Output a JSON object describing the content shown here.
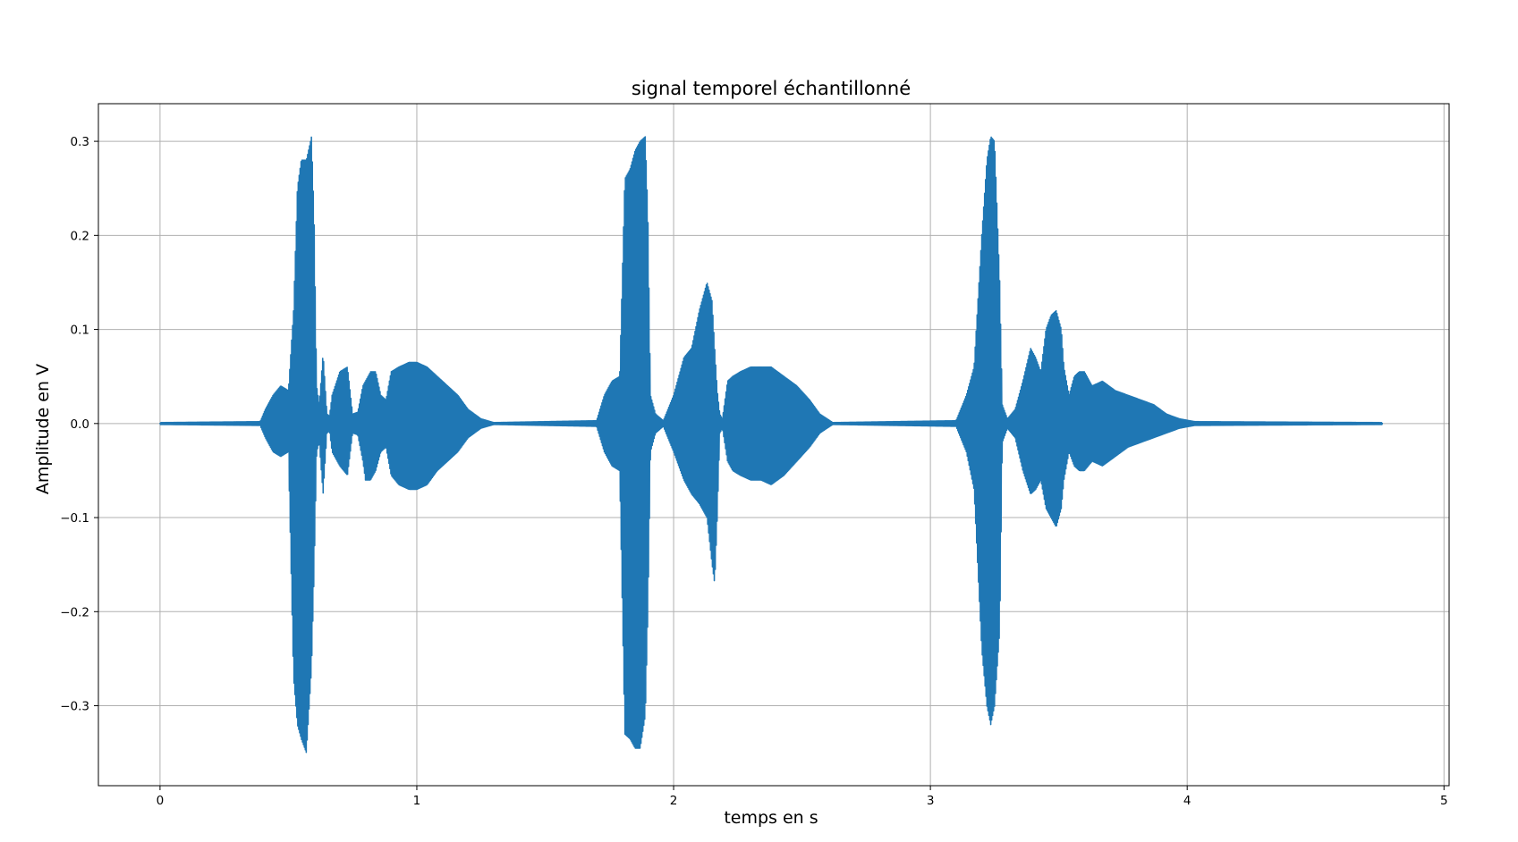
{
  "chart_data": {
    "type": "line",
    "title": "signal temporel échantillonné",
    "xlabel": "temps en s",
    "ylabel": "Amplitude en V",
    "xlim": [
      -0.24,
      5.02
    ],
    "ylim": [
      -0.385,
      0.34
    ],
    "xticks": [
      0,
      1,
      2,
      3,
      4,
      5
    ],
    "xtick_labels": [
      "0",
      "1",
      "2",
      "3",
      "4",
      "5"
    ],
    "yticks": [
      0.3,
      0.2,
      0.1,
      0.0,
      -0.1,
      -0.2,
      -0.3
    ],
    "ytick_labels": [
      "0.3",
      "0.2",
      "0.1",
      "0.0",
      "−0.1",
      "−0.2",
      "−0.3"
    ],
    "grid": true,
    "series": [
      {
        "color": "#1f77b4",
        "x_range": [
          0,
          4.76
        ],
        "envelope": {
          "x": [
            0,
            0.39,
            0.41,
            0.44,
            0.47,
            0.5,
            0.52,
            0.535,
            0.55,
            0.57,
            0.59,
            0.6,
            0.61,
            0.62,
            0.635,
            0.65,
            0.66,
            0.67,
            0.7,
            0.73,
            0.75,
            0.77,
            0.79,
            0.8,
            0.82,
            0.84,
            0.86,
            0.88,
            0.9,
            0.93,
            0.97,
            1.0,
            1.04,
            1.08,
            1.12,
            1.16,
            1.2,
            1.25,
            1.3,
            1.7,
            1.73,
            1.76,
            1.79,
            1.81,
            1.83,
            1.85,
            1.87,
            1.89,
            1.9,
            1.91,
            1.93,
            1.96,
            2.0,
            2.04,
            2.07,
            2.1,
            2.13,
            2.15,
            2.16,
            2.17,
            2.18,
            2.19,
            2.21,
            2.23,
            2.26,
            2.3,
            2.34,
            2.38,
            2.43,
            2.48,
            2.53,
            2.57,
            2.62,
            3.1,
            3.14,
            3.17,
            3.2,
            3.22,
            3.235,
            3.25,
            3.27,
            3.28,
            3.3,
            3.33,
            3.36,
            3.39,
            3.41,
            3.43,
            3.45,
            3.47,
            3.49,
            3.51,
            3.52,
            3.54,
            3.56,
            3.58,
            3.6,
            3.63,
            3.67,
            3.72,
            3.77,
            3.82,
            3.87,
            3.92,
            3.97,
            4.03,
            4.76
          ],
          "upper": [
            0.001,
            0.002,
            0.015,
            0.03,
            0.04,
            0.035,
            0.12,
            0.25,
            0.28,
            0.28,
            0.305,
            0.22,
            0.04,
            0.02,
            0.075,
            0.01,
            0.008,
            0.03,
            0.055,
            0.06,
            0.01,
            0.012,
            0.04,
            0.045,
            0.055,
            0.055,
            0.03,
            0.025,
            0.055,
            0.06,
            0.065,
            0.065,
            0.06,
            0.05,
            0.04,
            0.03,
            0.015,
            0.005,
            0.001,
            0.003,
            0.03,
            0.045,
            0.05,
            0.26,
            0.27,
            0.29,
            0.3,
            0.305,
            0.22,
            0.03,
            0.01,
            0.003,
            0.03,
            0.07,
            0.08,
            0.12,
            0.15,
            0.13,
            0.08,
            0.035,
            0.01,
            0.005,
            0.045,
            0.05,
            0.055,
            0.06,
            0.06,
            0.06,
            0.05,
            0.04,
            0.025,
            0.01,
            0.001,
            0.003,
            0.03,
            0.06,
            0.2,
            0.28,
            0.305,
            0.3,
            0.15,
            0.02,
            0.005,
            0.015,
            0.045,
            0.08,
            0.07,
            0.055,
            0.1,
            0.115,
            0.12,
            0.1,
            0.06,
            0.03,
            0.05,
            0.055,
            0.055,
            0.04,
            0.045,
            0.035,
            0.03,
            0.025,
            0.02,
            0.01,
            0.005,
            0.002,
            0.001
          ],
          "lower": [
            -0.001,
            -0.002,
            -0.015,
            -0.03,
            -0.035,
            -0.03,
            -0.27,
            -0.32,
            -0.335,
            -0.35,
            -0.26,
            -0.16,
            -0.03,
            -0.02,
            -0.075,
            -0.01,
            -0.008,
            -0.03,
            -0.045,
            -0.055,
            -0.01,
            -0.012,
            -0.04,
            -0.06,
            -0.06,
            -0.05,
            -0.03,
            -0.025,
            -0.055,
            -0.065,
            -0.07,
            -0.07,
            -0.065,
            -0.05,
            -0.04,
            -0.03,
            -0.015,
            -0.005,
            -0.001,
            -0.003,
            -0.03,
            -0.045,
            -0.05,
            -0.33,
            -0.335,
            -0.345,
            -0.345,
            -0.31,
            -0.2,
            -0.03,
            -0.01,
            -0.003,
            -0.03,
            -0.06,
            -0.075,
            -0.085,
            -0.1,
            -0.15,
            -0.17,
            -0.1,
            -0.01,
            -0.005,
            -0.04,
            -0.05,
            -0.055,
            -0.06,
            -0.06,
            -0.065,
            -0.055,
            -0.04,
            -0.025,
            -0.01,
            -0.001,
            -0.003,
            -0.03,
            -0.07,
            -0.24,
            -0.3,
            -0.32,
            -0.3,
            -0.22,
            -0.02,
            -0.005,
            -0.015,
            -0.05,
            -0.075,
            -0.07,
            -0.06,
            -0.09,
            -0.1,
            -0.11,
            -0.09,
            -0.06,
            -0.03,
            -0.045,
            -0.05,
            -0.05,
            -0.04,
            -0.045,
            -0.035,
            -0.025,
            -0.02,
            -0.015,
            -0.01,
            -0.005,
            -0.002,
            -0.001
          ]
        }
      }
    ]
  }
}
